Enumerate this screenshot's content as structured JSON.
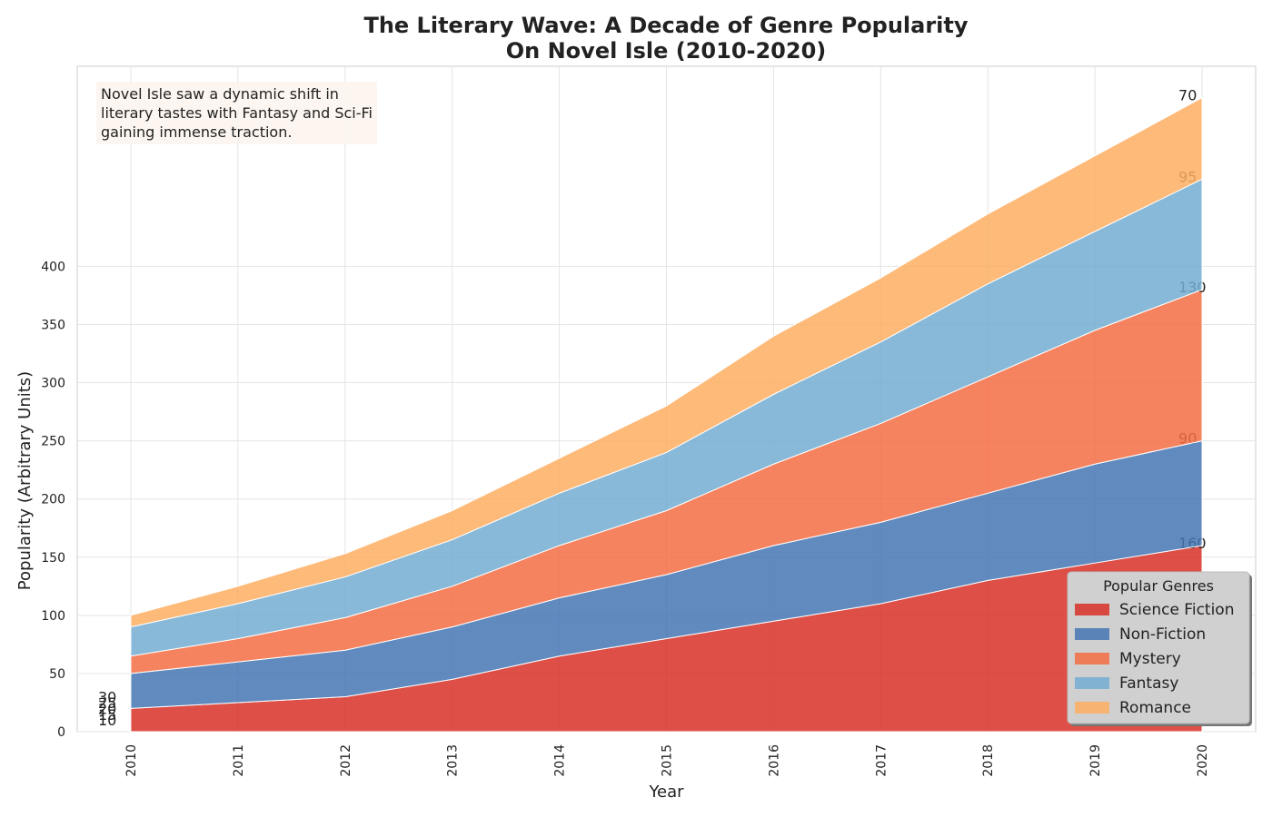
{
  "chart_data": {
    "type": "stacked_area",
    "title": "The Literary Wave: A Decade of Genre Popularity\nOn Novel Isle (2010-2020)",
    "x_label": "Year",
    "y_label": "Popularity (Arbitrary Units)",
    "annotation": "Novel Isle saw a dynamic shift in\nliterary tastes with Fantasy and Sci-Fi\ngaining immense traction.",
    "legend_title": "Popular Genres",
    "legend_loc": "lower right",
    "grid": true,
    "x": [
      2010,
      2011,
      2012,
      2013,
      2014,
      2015,
      2016,
      2017,
      2018,
      2019,
      2020
    ],
    "xlim": [
      2009.5,
      2020.5
    ],
    "xticks": [
      2010,
      2011,
      2012,
      2013,
      2014,
      2015,
      2016,
      2017,
      2018,
      2019,
      2020
    ],
    "ylim": [
      0,
      572
    ],
    "yticks": [
      0,
      50,
      100,
      150,
      200,
      250,
      300,
      350,
      400
    ],
    "series": [
      {
        "name": "Science Fiction",
        "color": "#d73027",
        "values": [
          20,
          25,
          30,
          45,
          65,
          80,
          95,
          110,
          130,
          145,
          160
        ]
      },
      {
        "name": "Non-Fiction",
        "color": "#4575b4",
        "values": [
          30,
          35,
          40,
          45,
          50,
          55,
          65,
          70,
          75,
          85,
          90
        ]
      },
      {
        "name": "Mystery",
        "color": "#f46d43",
        "values": [
          15,
          20,
          28,
          35,
          45,
          55,
          70,
          85,
          100,
          115,
          130
        ]
      },
      {
        "name": "Fantasy",
        "color": "#74add1",
        "values": [
          25,
          30,
          35,
          40,
          45,
          50,
          60,
          70,
          80,
          85,
          95
        ]
      },
      {
        "name": "Romance",
        "color": "#fdae61",
        "values": [
          10,
          15,
          20,
          25,
          30,
          40,
          50,
          55,
          60,
          65,
          70
        ]
      }
    ]
  }
}
